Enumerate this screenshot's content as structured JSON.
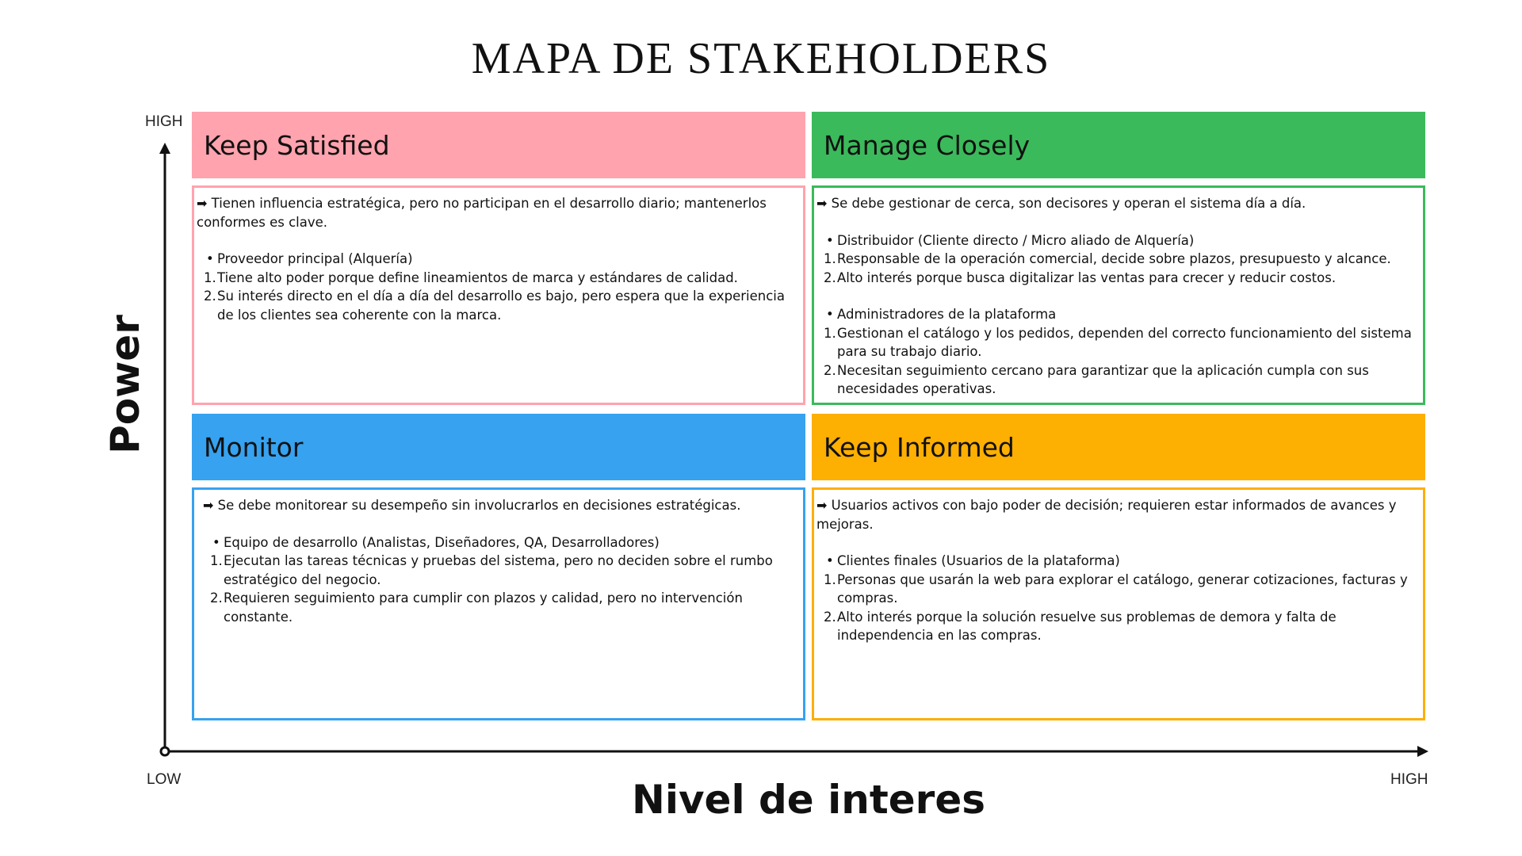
{
  "title": "MAPA DE STAKEHOLDERS",
  "axes": {
    "y_title": "Power",
    "x_title": "Nivel de interes",
    "y_high": "HIGH",
    "x_low": "LOW",
    "x_high": "HIGH"
  },
  "colors": {
    "keep_satisfied": "#ffa3ae",
    "manage_closely": "#3bba5b",
    "monitor": "#36a2f0",
    "keep_informed": "#fdaf02",
    "axis": "#111111"
  },
  "quadrants": {
    "keep_satisfied": {
      "title": "Keep Satisfied",
      "arrow": "➡",
      "intro": "Tienen influencia estratégica, pero no participan en el desarrollo diario; mantenerlos conformes es clave.",
      "groups": [
        {
          "bullet": "Proveedor principal (Alquería)",
          "points": [
            "Tiene alto poder porque define lineamientos de marca y estándares de calidad.",
            "Su interés directo en el día a día del desarrollo es bajo, pero espera que la experiencia de los clientes sea coherente con la marca."
          ]
        }
      ]
    },
    "manage_closely": {
      "title": "Manage Closely",
      "arrow": "➡",
      "intro": "Se debe gestionar de cerca, son decisores y operan el sistema día a día.",
      "groups": [
        {
          "bullet": "Distribuidor (Cliente directo / Micro aliado de Alquería)",
          "points": [
            "Responsable de la operación comercial, decide sobre plazos, presupuesto y alcance.",
            "Alto interés porque busca digitalizar las ventas para crecer y reducir costos."
          ]
        },
        {
          "bullet": "Administradores de la plataforma",
          "points": [
            "Gestionan el catálogo y los pedidos, dependen del correcto funcionamiento del sistema para su trabajo diario.",
            "Necesitan seguimiento cercano para garantizar que la aplicación cumpla con sus necesidades operativas."
          ]
        }
      ]
    },
    "monitor": {
      "title": "Monitor",
      "arrow": "➡",
      "intro": "Se debe monitorear su desempeño sin involucrarlos en decisiones estratégicas.",
      "groups": [
        {
          "bullet": "Equipo de desarrollo (Analistas, Diseñadores, QA, Desarrolladores)",
          "points": [
            "Ejecutan las tareas técnicas y pruebas del sistema, pero no deciden sobre el rumbo estratégico del negocio.",
            "Requieren seguimiento para cumplir con plazos y calidad, pero no intervención constante."
          ]
        }
      ]
    },
    "keep_informed": {
      "title": "Keep Informed",
      "arrow": "➡",
      "intro": "Usuarios activos con bajo poder de decisión; requieren estar informados de avances y mejoras.",
      "groups": [
        {
          "bullet": "Clientes finales (Usuarios de la plataforma)",
          "points": [
            "Personas que usarán la web para explorar el catálogo, generar cotizaciones, facturas y compras.",
            "Alto interés porque la solución resuelve sus problemas de demora y falta de independencia en las compras."
          ]
        }
      ]
    }
  }
}
